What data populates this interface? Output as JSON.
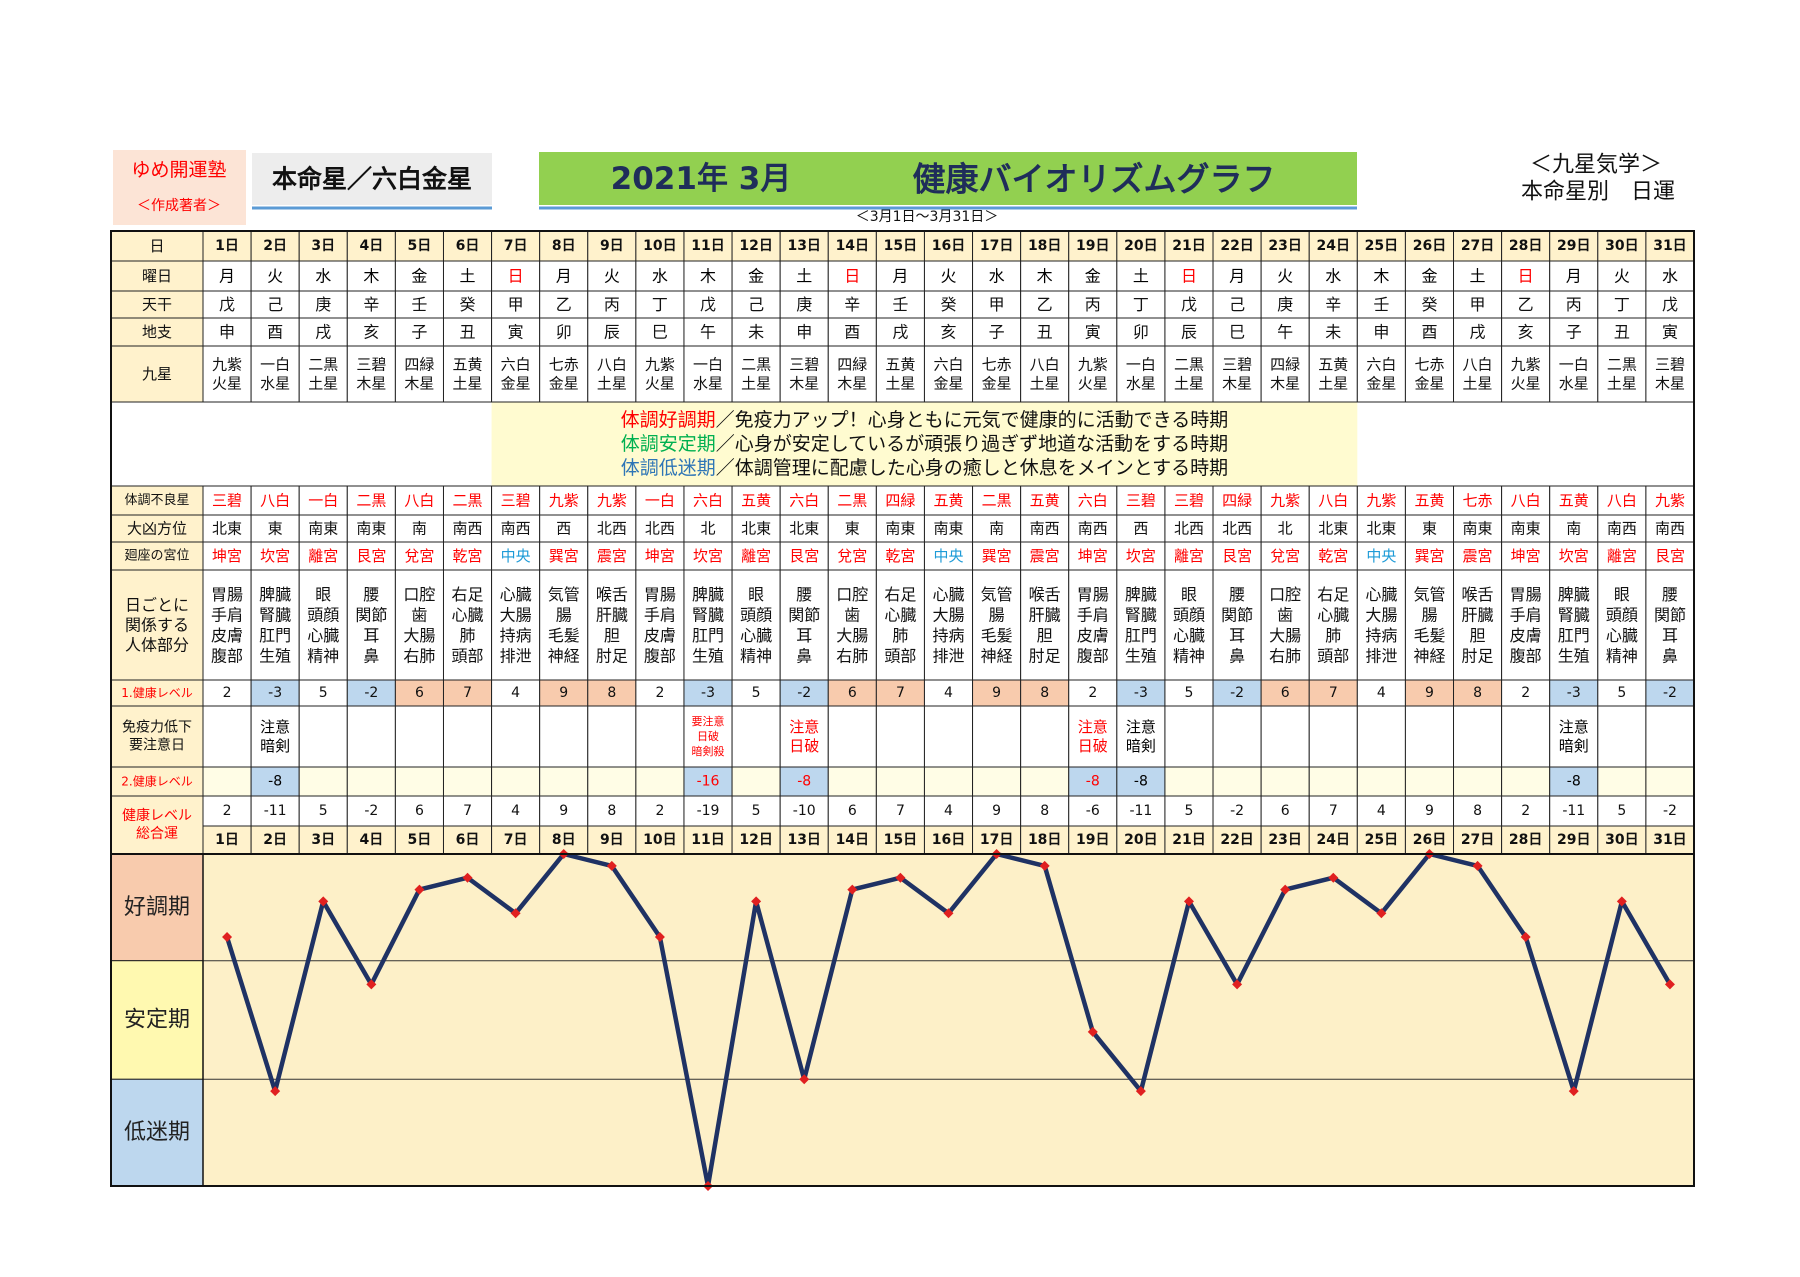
{
  "header": {
    "school": "ゆめ開運塾",
    "author": "＜作成著者＞",
    "honmeisei": "本命星／六白金星",
    "month": "2021年 3月",
    "title": "健康バイオリズムグラフ",
    "period": "＜3月1日～3月31日＞",
    "category": "＜九星気学＞",
    "subtitle": "本命星別　日運"
  },
  "row_labels": {
    "day": [
      "日"
    ],
    "weekday": [
      "曜日"
    ],
    "stem": [
      "天干"
    ],
    "branch": [
      "地支"
    ],
    "star": [
      "九星"
    ],
    "bad_star": [
      "体調不良星"
    ],
    "direction": [
      "大凶方位"
    ],
    "palace": [
      "廻座の宮位"
    ],
    "body": [
      "日ごとに",
      "関係する",
      "人体部分"
    ],
    "level1": [
      "1.健康レベル"
    ],
    "immune": [
      "免疫力低下",
      "要注意日"
    ],
    "level2": [
      "2.健康レベル"
    ],
    "total": [
      "健康レベル",
      "総合運"
    ]
  },
  "legend": [
    {
      "label": "体調好調期",
      "color": "#ff0000",
      "text": "／免疫力アップ！心身ともに元気で健康的に活動できる時期"
    },
    {
      "label": "体調安定期",
      "color": "#00b050",
      "text": "／心身が安定しているが頑張り過ぎず地道な活動をする時期"
    },
    {
      "label": "体調低迷期",
      "color": "#2e75b6",
      "text": "／体調管理に配慮した心身の癒しと休息をメインとする時期"
    }
  ],
  "table": {
    "weekdays": [
      "月",
      "火",
      "水",
      "木",
      "金",
      "土",
      "日",
      "月",
      "火",
      "水",
      "木",
      "金",
      "土",
      "日",
      "月",
      "火",
      "水",
      "木",
      "金",
      "土",
      "日",
      "月",
      "火",
      "水",
      "木",
      "金",
      "土",
      "日",
      "月",
      "火",
      "水"
    ],
    "weekday_colors": [
      "#000",
      "#000",
      "#000",
      "#000",
      "#000",
      "#000",
      "#f00",
      "#000",
      "#000",
      "#000",
      "#000",
      "#000",
      "#000",
      "#f00",
      "#000",
      "#000",
      "#000",
      "#000",
      "#000",
      "#000",
      "#f00",
      "#000",
      "#000",
      "#000",
      "#000",
      "#000",
      "#000",
      "#f00",
      "#000",
      "#000",
      "#000"
    ],
    "stems": [
      "戊",
      "己",
      "庚",
      "辛",
      "壬",
      "癸",
      "甲",
      "乙",
      "丙",
      "丁",
      "戊",
      "己",
      "庚",
      "辛",
      "壬",
      "癸",
      "甲",
      "乙",
      "丙",
      "丁",
      "戊",
      "己",
      "庚",
      "辛",
      "壬",
      "癸",
      "甲",
      "乙",
      "丙",
      "丁",
      "戊"
    ],
    "branches": [
      "申",
      "酉",
      "戌",
      "亥",
      "子",
      "丑",
      "寅",
      "卯",
      "辰",
      "巳",
      "午",
      "未",
      "申",
      "酉",
      "戌",
      "亥",
      "子",
      "丑",
      "寅",
      "卯",
      "辰",
      "巳",
      "午",
      "未",
      "申",
      "酉",
      "戌",
      "亥",
      "子",
      "丑",
      "寅"
    ],
    "stars": [
      [
        "九紫",
        "火星"
      ],
      [
        "一白",
        "水星"
      ],
      [
        "二黒",
        "土星"
      ],
      [
        "三碧",
        "木星"
      ],
      [
        "四緑",
        "木星"
      ],
      [
        "五黄",
        "土星"
      ],
      [
        "六白",
        "金星"
      ],
      [
        "七赤",
        "金星"
      ],
      [
        "八白",
        "土星"
      ],
      [
        "九紫",
        "火星"
      ],
      [
        "一白",
        "水星"
      ],
      [
        "二黒",
        "土星"
      ],
      [
        "三碧",
        "木星"
      ],
      [
        "四緑",
        "木星"
      ],
      [
        "五黄",
        "土星"
      ],
      [
        "六白",
        "金星"
      ],
      [
        "七赤",
        "金星"
      ],
      [
        "八白",
        "土星"
      ],
      [
        "九紫",
        "火星"
      ],
      [
        "一白",
        "水星"
      ],
      [
        "二黒",
        "土星"
      ],
      [
        "三碧",
        "木星"
      ],
      [
        "四緑",
        "木星"
      ],
      [
        "五黄",
        "土星"
      ],
      [
        "六白",
        "金星"
      ],
      [
        "七赤",
        "金星"
      ],
      [
        "八白",
        "土星"
      ],
      [
        "九紫",
        "火星"
      ],
      [
        "一白",
        "水星"
      ],
      [
        "二黒",
        "土星"
      ],
      [
        "三碧",
        "木星"
      ]
    ],
    "bad_stars": [
      "三碧",
      "八白",
      "一白",
      "二黒",
      "八白",
      "二黒",
      "三碧",
      "九紫",
      "九紫",
      "一白",
      "六白",
      "五黄",
      "六白",
      "二黒",
      "四緑",
      "五黄",
      "二黒",
      "五黄",
      "六白",
      "三碧",
      "三碧",
      "四緑",
      "九紫",
      "八白",
      "九紫",
      "五黄",
      "七赤",
      "八白",
      "五黄",
      "八白",
      "九紫"
    ],
    "directions": [
      "北東",
      "東",
      "南東",
      "南東",
      "南",
      "南西",
      "南西",
      "西",
      "北西",
      "北西",
      "北",
      "北東",
      "北東",
      "東",
      "南東",
      "南東",
      "南",
      "南西",
      "南西",
      "西",
      "北西",
      "北西",
      "北",
      "北東",
      "北東",
      "東",
      "南東",
      "南東",
      "南",
      "南西",
      "南西"
    ],
    "palaces": [
      "坤宮",
      "坎宮",
      "離宮",
      "艮宮",
      "兌宮",
      "乾宮",
      "中央",
      "巽宮",
      "震宮",
      "坤宮",
      "坎宮",
      "離宮",
      "艮宮",
      "兌宮",
      "乾宮",
      "中央",
      "巽宮",
      "震宮",
      "坤宮",
      "坎宮",
      "離宮",
      "艮宮",
      "兌宮",
      "乾宮",
      "中央",
      "巽宮",
      "震宮",
      "坤宮",
      "坎宮",
      "離宮",
      "艮宮"
    ],
    "palace_colors": [
      "#f00",
      "#f00",
      "#f00",
      "#f00",
      "#f00",
      "#f00",
      "#1e9bd7",
      "#f00",
      "#f00",
      "#f00",
      "#f00",
      "#f00",
      "#f00",
      "#f00",
      "#f00",
      "#1e9bd7",
      "#f00",
      "#f00",
      "#f00",
      "#f00",
      "#f00",
      "#f00",
      "#f00",
      "#f00",
      "#1e9bd7",
      "#f00",
      "#f00",
      "#f00",
      "#f00",
      "#f00",
      "#f00"
    ],
    "body_parts": [
      [
        "胃腸",
        "手肩",
        "皮膚",
        "腹部"
      ],
      [
        "脾臓",
        "腎臓",
        "肛門",
        "生殖"
      ],
      [
        "眼",
        "頭顔",
        "心臓",
        "精神"
      ],
      [
        "腰",
        "関節",
        "耳",
        "鼻"
      ],
      [
        "口腔",
        "歯",
        "大腸",
        "右肺"
      ],
      [
        "右足",
        "心臓",
        "肺",
        "頭部"
      ],
      [
        "心臓",
        "大腸",
        "持病",
        "排泄"
      ],
      [
        "気管",
        "腸",
        "毛髪",
        "神経"
      ],
      [
        "喉舌",
        "肝臓",
        "胆",
        "肘足"
      ],
      [
        "胃腸",
        "手肩",
        "皮膚",
        "腹部"
      ],
      [
        "脾臓",
        "腎臓",
        "肛門",
        "生殖"
      ],
      [
        "眼",
        "頭顔",
        "心臓",
        "精神"
      ],
      [
        "腰",
        "関節",
        "耳",
        "鼻"
      ],
      [
        "口腔",
        "歯",
        "大腸",
        "右肺"
      ],
      [
        "右足",
        "心臓",
        "肺",
        "頭部"
      ],
      [
        "心臓",
        "大腸",
        "持病",
        "排泄"
      ],
      [
        "気管",
        "腸",
        "毛髪",
        "神経"
      ],
      [
        "喉舌",
        "肝臓",
        "胆",
        "肘足"
      ],
      [
        "胃腸",
        "手肩",
        "皮膚",
        "腹部"
      ],
      [
        "脾臓",
        "腎臓",
        "肛門",
        "生殖"
      ],
      [
        "眼",
        "頭顔",
        "心臓",
        "精神"
      ],
      [
        "腰",
        "関節",
        "耳",
        "鼻"
      ],
      [
        "口腔",
        "歯",
        "大腸",
        "右肺"
      ],
      [
        "右足",
        "心臓",
        "肺",
        "頭部"
      ],
      [
        "心臓",
        "大腸",
        "持病",
        "排泄"
      ],
      [
        "気管",
        "腸",
        "毛髪",
        "神経"
      ],
      [
        "喉舌",
        "肝臓",
        "胆",
        "肘足"
      ],
      [
        "胃腸",
        "手肩",
        "皮膚",
        "腹部"
      ],
      [
        "脾臓",
        "腎臓",
        "肛門",
        "生殖"
      ],
      [
        "眼",
        "頭顔",
        "心臓",
        "精神"
      ],
      [
        "腰",
        "関節",
        "耳",
        "鼻"
      ]
    ],
    "level1": [
      2,
      -3,
      5,
      -2,
      6,
      7,
      4,
      9,
      8,
      2,
      -3,
      5,
      -2,
      6,
      7,
      4,
      9,
      8,
      2,
      -3,
      5,
      -2,
      6,
      7,
      4,
      9,
      8,
      2,
      -3,
      5,
      -2
    ],
    "immune_notes": [
      null,
      {
        "lines": [
          "注意",
          "暗剣"
        ],
        "color": "#000"
      },
      null,
      null,
      null,
      null,
      null,
      null,
      null,
      null,
      {
        "lines": [
          "要注意",
          "日破",
          "暗剣殺"
        ],
        "color": "#f00"
      },
      null,
      {
        "lines": [
          "注意",
          "日破"
        ],
        "color": "#f00"
      },
      null,
      null,
      null,
      null,
      null,
      {
        "lines": [
          "注意",
          "日破"
        ],
        "color": "#f00"
      },
      {
        "lines": [
          "注意",
          "暗剣"
        ],
        "color": "#000"
      },
      null,
      null,
      null,
      null,
      null,
      null,
      null,
      null,
      {
        "lines": [
          "注意",
          "暗剣"
        ],
        "color": "#000"
      },
      null,
      null
    ],
    "level2": [
      null,
      {
        "value": -8,
        "color": "#000"
      },
      null,
      null,
      null,
      null,
      null,
      null,
      null,
      null,
      {
        "value": -16,
        "color": "#f00"
      },
      null,
      {
        "value": -8,
        "color": "#f00"
      },
      null,
      null,
      null,
      null,
      null,
      {
        "value": -8,
        "color": "#f00"
      },
      {
        "value": -8,
        "color": "#000"
      },
      null,
      null,
      null,
      null,
      null,
      null,
      null,
      null,
      {
        "value": -8,
        "color": "#000"
      },
      null,
      null
    ]
  },
  "chart_data": {
    "type": "line",
    "categories": [
      "1日",
      "2日",
      "3日",
      "4日",
      "5日",
      "6日",
      "7日",
      "8日",
      "9日",
      "10日",
      "11日",
      "12日",
      "13日",
      "14日",
      "15日",
      "16日",
      "17日",
      "18日",
      "19日",
      "20日",
      "21日",
      "22日",
      "23日",
      "24日",
      "25日",
      "26日",
      "27日",
      "28日",
      "29日",
      "30日",
      "31日"
    ],
    "values": [
      2,
      -11,
      5,
      -2,
      6,
      7,
      4,
      9,
      8,
      2,
      -19,
      5,
      -10,
      6,
      7,
      4,
      9,
      8,
      -6,
      -11,
      5,
      -2,
      6,
      7,
      4,
      9,
      8,
      2,
      -11,
      5,
      -2
    ],
    "color": "#1f3264",
    "marker_color": "#e02020",
    "ylim": [
      -19,
      9
    ],
    "yticks": [
      0,
      -10
    ],
    "grid": true,
    "bands": [
      {
        "label": "好調期",
        "color": "#f8cbad"
      },
      {
        "label": "安定期",
        "color": "#fff9b0"
      },
      {
        "label": "低迷期",
        "color": "#bdd7ee"
      }
    ]
  }
}
